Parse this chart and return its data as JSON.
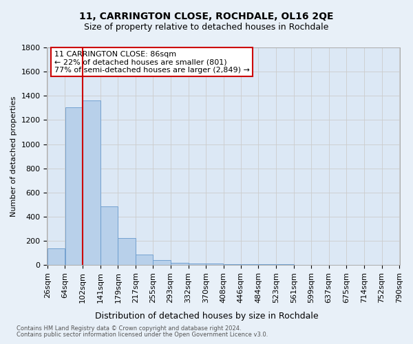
{
  "title": "11, CARRINGTON CLOSE, ROCHDALE, OL16 2QE",
  "subtitle": "Size of property relative to detached houses in Rochdale",
  "xlabel": "Distribution of detached houses by size in Rochdale",
  "ylabel": "Number of detached properties",
  "footnote1": "Contains HM Land Registry data © Crown copyright and database right 2024.",
  "footnote2": "Contains public sector information licensed under the Open Government Licence v3.0.",
  "bar_left_edges": [
    26,
    64,
    102,
    141,
    179,
    217,
    255,
    293,
    332,
    370,
    408,
    446,
    484,
    523,
    561,
    599,
    637,
    675,
    714,
    752
  ],
  "bar_widths": [
    38,
    38,
    39,
    38,
    38,
    38,
    38,
    39,
    38,
    38,
    38,
    38,
    39,
    38,
    38,
    38,
    38,
    39,
    38,
    38
  ],
  "bar_heights": [
    140,
    1304,
    1363,
    484,
    224,
    86,
    39,
    18,
    14,
    12,
    9,
    6,
    5,
    4,
    3,
    2,
    2,
    1,
    1,
    1
  ],
  "bar_color": "#b8d0ea",
  "bar_edge_color": "#6699cc",
  "property_sqm": 86,
  "vline_x": 102,
  "annotation_text": "11 CARRINGTON CLOSE: 86sqm\n← 22% of detached houses are smaller (801)\n77% of semi-detached houses are larger (2,849) →",
  "vline_color": "#cc0000",
  "annotation_box_color": "#cc0000",
  "ylim": [
    0,
    1800
  ],
  "yticks": [
    0,
    200,
    400,
    600,
    800,
    1000,
    1200,
    1400,
    1600,
    1800
  ],
  "xtick_labels": [
    "26sqm",
    "64sqm",
    "102sqm",
    "141sqm",
    "179sqm",
    "217sqm",
    "255sqm",
    "293sqm",
    "332sqm",
    "370sqm",
    "408sqm",
    "446sqm",
    "484sqm",
    "523sqm",
    "561sqm",
    "599sqm",
    "637sqm",
    "675sqm",
    "714sqm",
    "752sqm",
    "790sqm"
  ],
  "grid_color": "#cccccc",
  "bg_color": "#e8f0f8",
  "plot_bg_color": "#dce8f5",
  "title_fontsize": 10,
  "subtitle_fontsize": 9,
  "ylabel_fontsize": 8,
  "tick_fontsize": 8,
  "annot_fontsize": 8,
  "footnote_fontsize": 6
}
